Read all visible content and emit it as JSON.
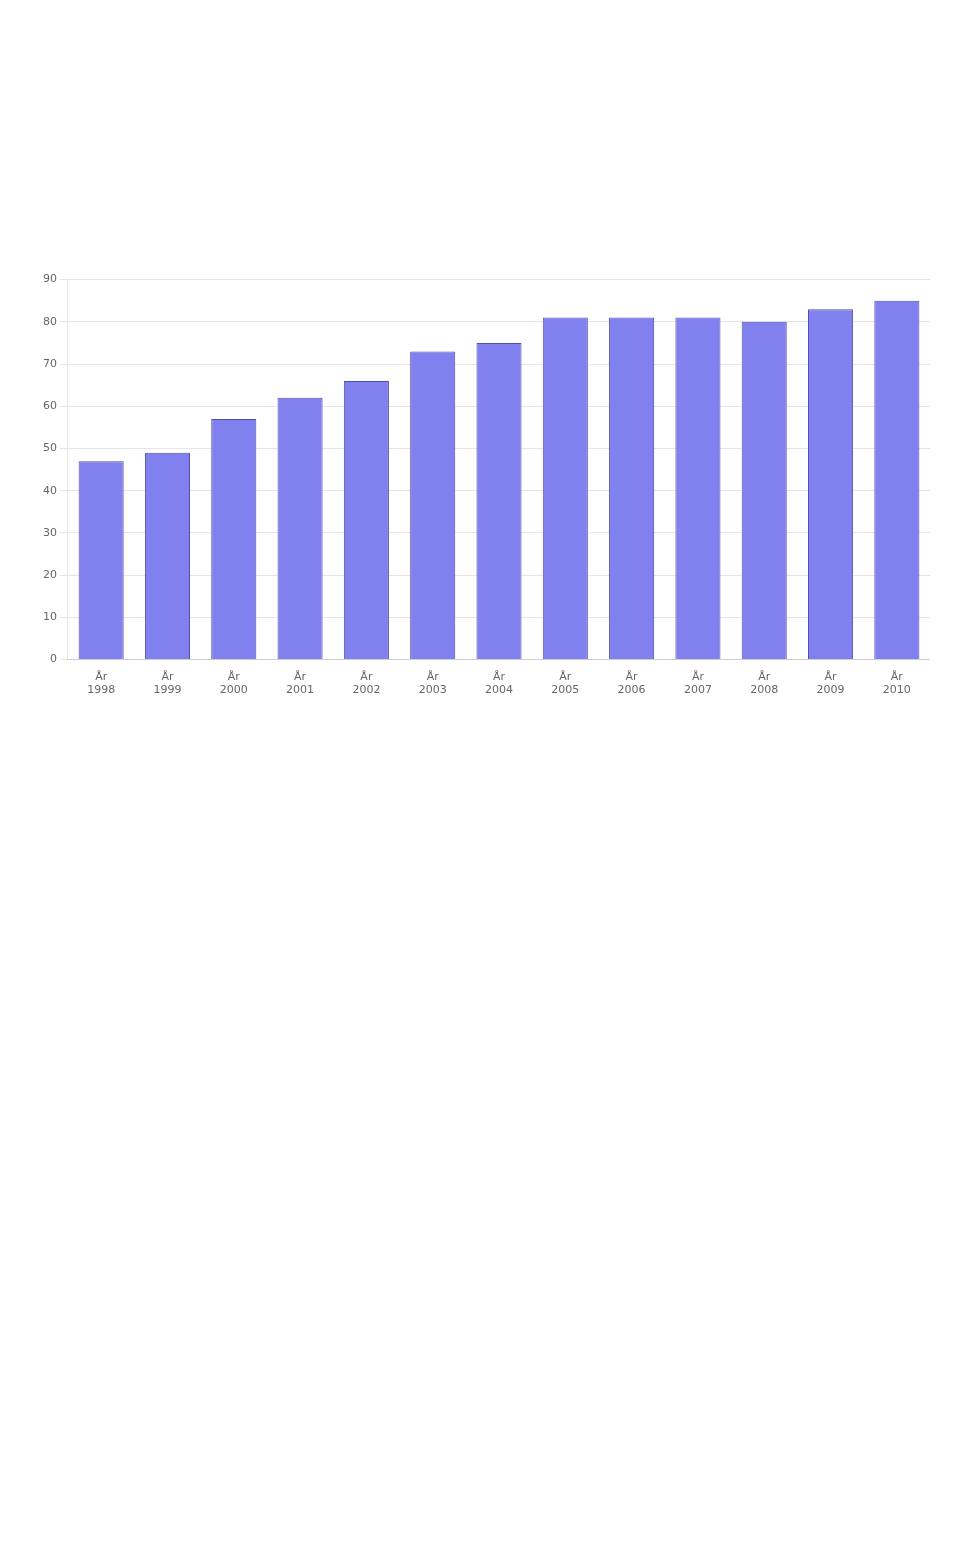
{
  "chart_data": {
    "type": "bar",
    "categories": [
      "År\n1998",
      "År\n1999",
      "År\n2000",
      "År\n2001",
      "År\n2002",
      "År\n2003",
      "År\n2004",
      "År\n2005",
      "År\n2006",
      "År\n2007",
      "År\n2008",
      "År\n2009",
      "År\n2010"
    ],
    "values": [
      47,
      49,
      57,
      62,
      66,
      73,
      75,
      81,
      81,
      81,
      80,
      83,
      85
    ],
    "color": "#8080EE",
    "ylim": [
      0,
      90
    ],
    "yticks": [
      0,
      10,
      20,
      30,
      40,
      50,
      60,
      70,
      80,
      90
    ],
    "grid": true
  }
}
